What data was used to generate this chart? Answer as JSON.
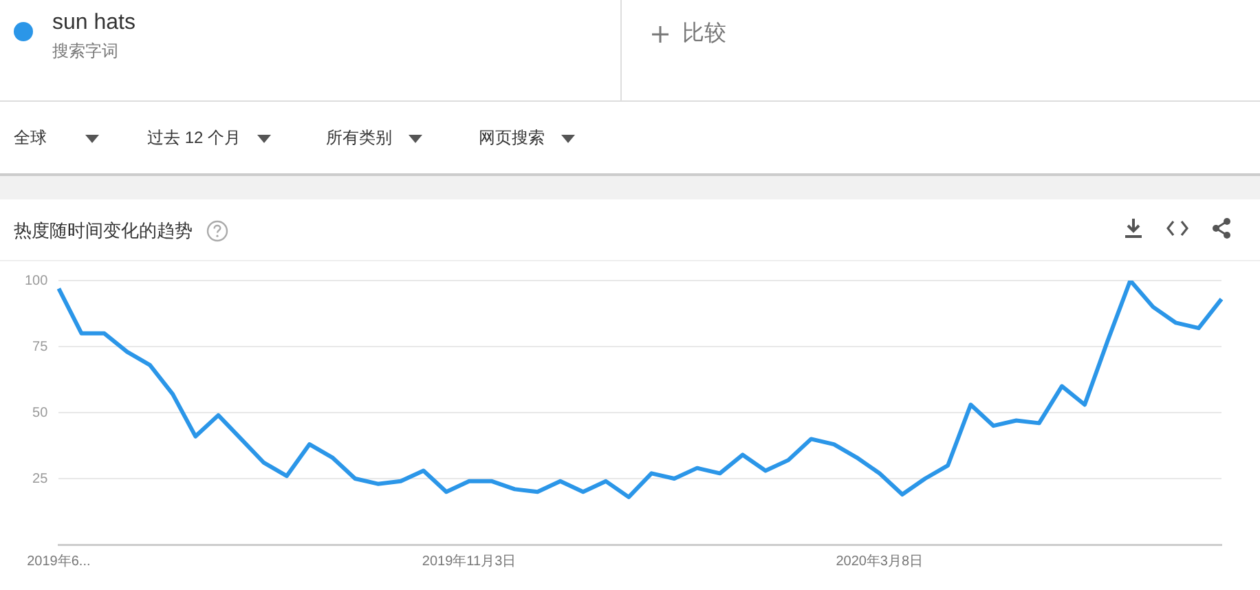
{
  "chart_data": {
    "type": "line",
    "title": "热度随时间变化的趋势",
    "annotations": [
      "搜索字词",
      "比较",
      "全球",
      "过去 12 个月",
      "所有类别",
      "网页搜索"
    ],
    "categories": [
      "2019年6...",
      null,
      null,
      null,
      null,
      null,
      null,
      null,
      null,
      null,
      null,
      null,
      null,
      null,
      null,
      null,
      null,
      null,
      "2019年11月3日",
      null,
      null,
      null,
      null,
      null,
      null,
      null,
      null,
      null,
      null,
      null,
      null,
      null,
      null,
      null,
      null,
      null,
      "2020年3月8日",
      null,
      null,
      null,
      null,
      null,
      null,
      null,
      null,
      null,
      null,
      null,
      null,
      null,
      null,
      null
    ],
    "series": [
      {
        "name": "sun hats",
        "color": "#2b96e8",
        "values": [
          97,
          80,
          80,
          73,
          68,
          57,
          41,
          49,
          40,
          31,
          26,
          38,
          33,
          25,
          23,
          24,
          28,
          20,
          24,
          24,
          21,
          20,
          24,
          20,
          24,
          18,
          27,
          25,
          29,
          27,
          34,
          28,
          32,
          40,
          38,
          33,
          27,
          19,
          25,
          30,
          53,
          45,
          47,
          46,
          60,
          53,
          77,
          100,
          90,
          84,
          82,
          93
        ]
      }
    ],
    "ylim": [
      0,
      100
    ],
    "yticks": [
      25,
      50,
      75,
      100
    ],
    "grid": "y",
    "legend": "top left",
    "marker": "none",
    "line_style": "solid"
  }
}
